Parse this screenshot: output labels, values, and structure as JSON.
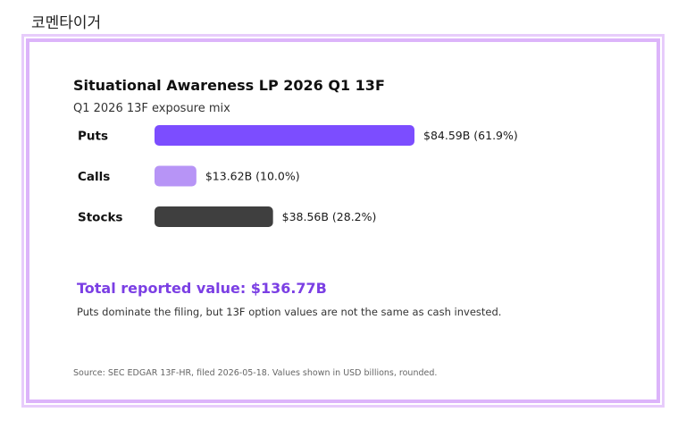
{
  "caption": "코멘타이거",
  "chart_data": {
    "type": "bar",
    "orientation": "horizontal",
    "title": "Situational Awareness LP 2026 Q1 13F",
    "subtitle": "Q1 2026 13F exposure mix",
    "categories": [
      "Puts",
      "Calls",
      "Stocks"
    ],
    "values": [
      84.59,
      13.62,
      38.56
    ],
    "value_labels": [
      "$84.59B (61.9%)",
      "$13.62B (10.0%)",
      "$38.56B (28.2%)"
    ],
    "colors": [
      "#7c4dff",
      "#b794f6",
      "#3f3f3f"
    ],
    "grid": false,
    "unit": "USD billions"
  },
  "summary": {
    "total": "Total reported value: $136.77B",
    "note": "Puts dominate the filing, but 13F option values are not the same as cash invested."
  },
  "source": "Source: SEC EDGAR 13F-HR, filed 2026-05-18. Values shown in USD billions, rounded.",
  "colors": {
    "frame_outer": "#e7ccfb",
    "frame_inner": "#dcb4fa",
    "total_text": "#7b3fe4"
  }
}
